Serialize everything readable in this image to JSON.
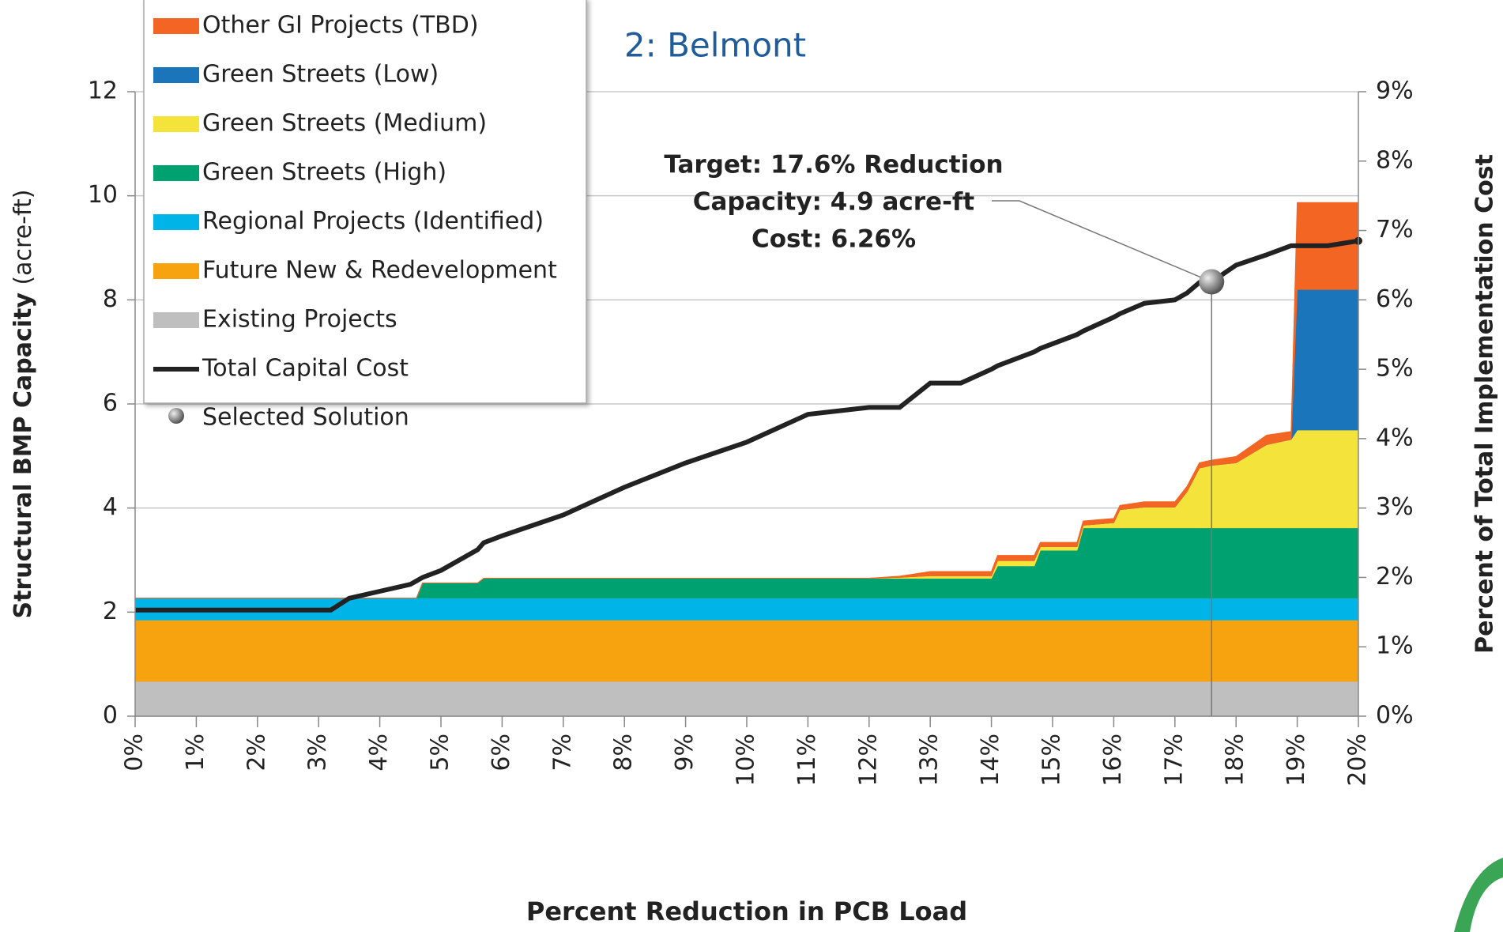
{
  "chart_data": {
    "type": "stacked_area_line",
    "title": "2: Belmont",
    "x_label": "Percent Reduction in PCB Load",
    "y_label": "Structural BMP Capacity",
    "y_label_unit": "(acre-ft)",
    "y2_label": "Percent of Total Implementation Cost",
    "x": [
      0,
      1,
      2,
      3,
      3.2,
      3.5,
      4,
      4.5,
      4.6,
      4.7,
      5,
      5.6,
      5.7,
      6,
      7,
      8,
      9,
      10,
      11,
      12,
      12.5,
      13,
      13.5,
      14,
      14.1,
      14.7,
      14.8,
      15.4,
      15.5,
      16,
      16.1,
      16.5,
      17,
      17.2,
      17.4,
      17.6,
      18,
      18.5,
      18.9,
      19,
      19.5,
      20
    ],
    "series": [
      {
        "name": "Existing Projects",
        "color": "#bfbfbf",
        "values": [
          0.67,
          0.67,
          0.67,
          0.67,
          0.67,
          0.67,
          0.67,
          0.67,
          0.67,
          0.67,
          0.67,
          0.67,
          0.67,
          0.67,
          0.67,
          0.67,
          0.67,
          0.67,
          0.67,
          0.67,
          0.67,
          0.67,
          0.67,
          0.67,
          0.67,
          0.67,
          0.67,
          0.67,
          0.67,
          0.67,
          0.67,
          0.67,
          0.67,
          0.67,
          0.67,
          0.67,
          0.67,
          0.67,
          0.67,
          0.67,
          0.67,
          0.67
        ]
      },
      {
        "name": "Future New & Redevelopment",
        "color": "#f7a20f",
        "values": [
          1.18,
          1.18,
          1.18,
          1.18,
          1.18,
          1.18,
          1.18,
          1.18,
          1.18,
          1.18,
          1.18,
          1.18,
          1.18,
          1.18,
          1.18,
          1.18,
          1.18,
          1.18,
          1.18,
          1.18,
          1.18,
          1.18,
          1.18,
          1.18,
          1.18,
          1.18,
          1.18,
          1.18,
          1.18,
          1.18,
          1.18,
          1.18,
          1.18,
          1.18,
          1.18,
          1.18,
          1.18,
          1.18,
          1.18,
          1.18,
          1.18,
          1.18
        ]
      },
      {
        "name": "Regional Projects (Identified)",
        "color": "#00b4e8",
        "values": [
          0.42,
          0.42,
          0.42,
          0.42,
          0.42,
          0.42,
          0.42,
          0.42,
          0.42,
          0.42,
          0.42,
          0.42,
          0.42,
          0.42,
          0.42,
          0.42,
          0.42,
          0.42,
          0.42,
          0.42,
          0.42,
          0.42,
          0.42,
          0.42,
          0.42,
          0.42,
          0.42,
          0.42,
          0.42,
          0.42,
          0.42,
          0.42,
          0.42,
          0.42,
          0.42,
          0.42,
          0.42,
          0.42,
          0.42,
          0.42,
          0.42,
          0.42
        ]
      },
      {
        "name": "Green Streets (High)",
        "color": "#00a170",
        "values": [
          0,
          0,
          0,
          0,
          0,
          0,
          0,
          0,
          0,
          0.29,
          0.29,
          0.29,
          0.38,
          0.38,
          0.38,
          0.38,
          0.38,
          0.38,
          0.38,
          0.38,
          0.38,
          0.38,
          0.38,
          0.38,
          0.62,
          0.62,
          0.92,
          0.92,
          1.35,
          1.35,
          1.35,
          1.35,
          1.35,
          1.35,
          1.35,
          1.35,
          1.35,
          1.35,
          1.35,
          1.35,
          1.35,
          1.35
        ]
      },
      {
        "name": "Green Streets (Medium)",
        "color": "#f3e33a",
        "values": [
          0,
          0,
          0,
          0,
          0,
          0,
          0,
          0,
          0,
          0,
          0,
          0,
          0,
          0,
          0,
          0,
          0,
          0,
          0,
          0,
          0.02,
          0.05,
          0.05,
          0.05,
          0.1,
          0.1,
          0.07,
          0.07,
          0.05,
          0.1,
          0.35,
          0.4,
          0.4,
          0.7,
          1.15,
          1.2,
          1.25,
          1.6,
          1.7,
          1.88,
          1.88,
          1.88
        ]
      },
      {
        "name": "Green Streets (Low)",
        "color": "#1a75bb",
        "values": [
          0,
          0,
          0,
          0,
          0,
          0,
          0,
          0,
          0,
          0,
          0,
          0,
          0,
          0,
          0,
          0,
          0,
          0,
          0,
          0,
          0,
          0,
          0,
          0,
          0,
          0,
          0,
          0,
          0,
          0,
          0,
          0,
          0,
          0,
          0,
          0,
          0,
          0,
          0,
          2.7,
          2.7,
          2.7
        ]
      },
      {
        "name": "Other GI Projects (TBD)",
        "color": "#f26522",
        "values": [
          0,
          0,
          0,
          0,
          0,
          0,
          0,
          0,
          0,
          0,
          0,
          0,
          0,
          0,
          0,
          0,
          0,
          0,
          0,
          0,
          0.02,
          0.08,
          0.08,
          0.08,
          0.1,
          0.1,
          0.08,
          0.08,
          0.08,
          0.08,
          0.08,
          0.1,
          0.1,
          0.1,
          0.1,
          0.1,
          0.12,
          0.18,
          0.15,
          1.67,
          1.67,
          1.67
        ]
      }
    ],
    "line": {
      "name": "Total Capital Cost",
      "color": "#222222",
      "axis": "y2",
      "values": [
        1.53,
        1.53,
        1.53,
        1.53,
        1.53,
        1.7,
        1.8,
        1.9,
        1.95,
        2.0,
        2.1,
        2.4,
        2.5,
        2.6,
        2.9,
        3.3,
        3.65,
        3.95,
        4.35,
        4.45,
        4.45,
        4.8,
        4.8,
        5.0,
        5.05,
        5.25,
        5.3,
        5.5,
        5.55,
        5.75,
        5.8,
        5.95,
        6.0,
        6.1,
        6.25,
        6.26,
        6.5,
        6.65,
        6.78,
        6.78,
        6.78,
        6.85
      ]
    },
    "selected": {
      "name": "Selected Solution",
      "x": 17.6,
      "y2": 6.26,
      "annotation": [
        "Target: 17.6% Reduction",
        "Capacity: 4.9 acre-ft",
        "Cost: 6.26%"
      ]
    },
    "xlim": [
      0,
      20
    ],
    "xticks": [
      {
        "value": 0,
        "label": "0%"
      },
      {
        "value": 1,
        "label": "1%"
      },
      {
        "value": 2,
        "label": "2%"
      },
      {
        "value": 3,
        "label": "3%"
      },
      {
        "value": 4,
        "label": "4%"
      },
      {
        "value": 5,
        "label": "5%"
      },
      {
        "value": 6,
        "label": "6%"
      },
      {
        "value": 7,
        "label": "7%"
      },
      {
        "value": 8,
        "label": "8%"
      },
      {
        "value": 9,
        "label": "9%"
      },
      {
        "value": 10,
        "label": "10%"
      },
      {
        "value": 11,
        "label": "11%"
      },
      {
        "value": 12,
        "label": "12%"
      },
      {
        "value": 13,
        "label": "13%"
      },
      {
        "value": 14,
        "label": "14%"
      },
      {
        "value": 15,
        "label": "15%"
      },
      {
        "value": 16,
        "label": "16%"
      },
      {
        "value": 17,
        "label": "17%"
      },
      {
        "value": 18,
        "label": "18%"
      },
      {
        "value": 19,
        "label": "19%"
      },
      {
        "value": 20,
        "label": "20%"
      }
    ],
    "ylim": [
      0,
      12
    ],
    "yticks": [
      0,
      2,
      4,
      6,
      8,
      10,
      12
    ],
    "y2lim": [
      0,
      9
    ],
    "y2ticks": [
      {
        "value": 0,
        "label": "0%"
      },
      {
        "value": 1,
        "label": "1%"
      },
      {
        "value": 2,
        "label": "2%"
      },
      {
        "value": 3,
        "label": "3%"
      },
      {
        "value": 4,
        "label": "4%"
      },
      {
        "value": 5,
        "label": "5%"
      },
      {
        "value": 6,
        "label": "6%"
      },
      {
        "value": 7,
        "label": "7%"
      },
      {
        "value": 8,
        "label": "8%"
      },
      {
        "value": 9,
        "label": "9%"
      }
    ],
    "grid": true,
    "legend": "upper left"
  }
}
